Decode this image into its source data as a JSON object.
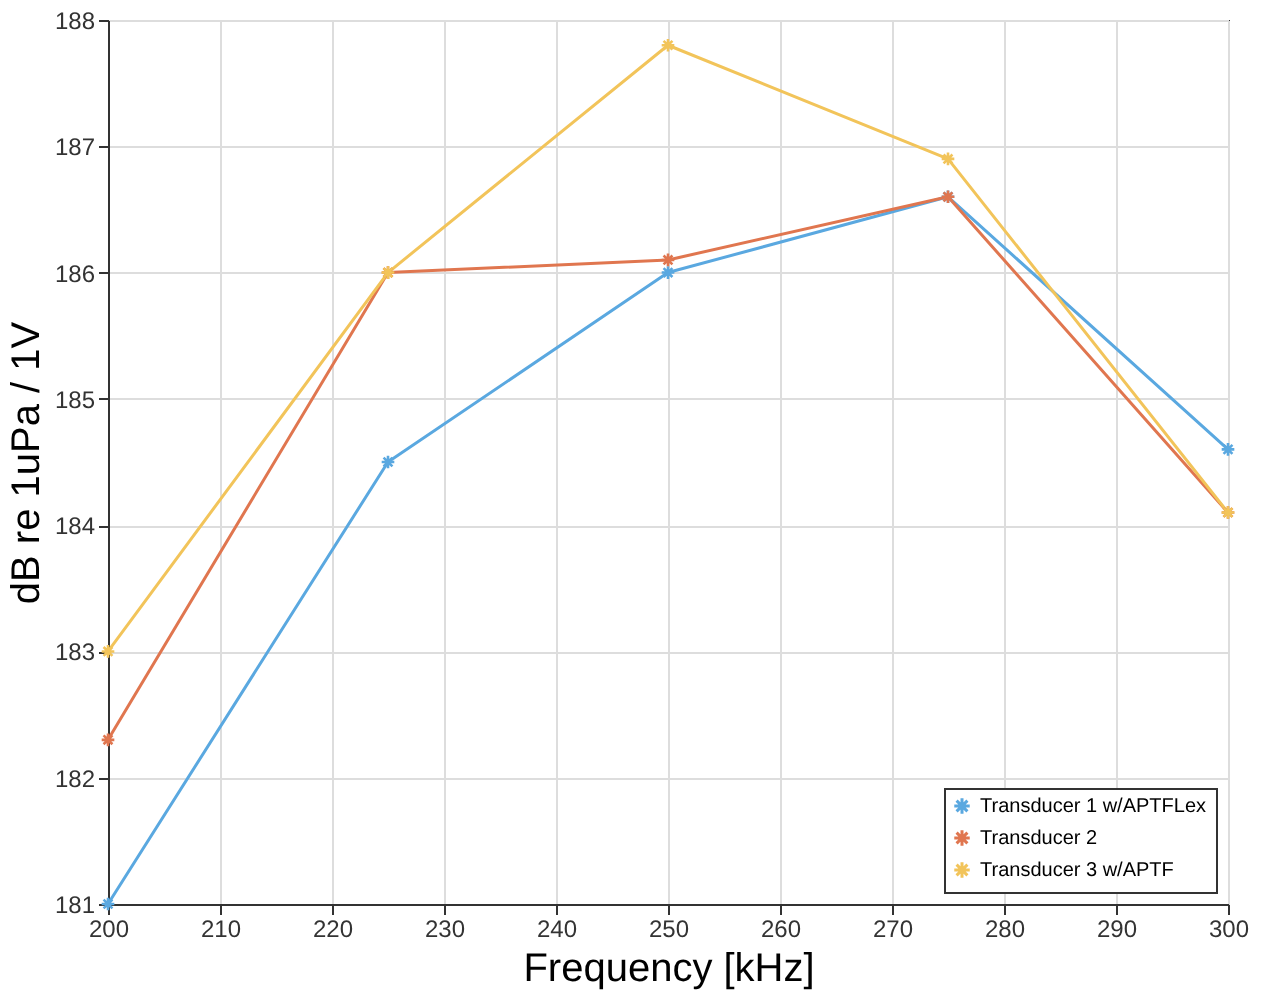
{
  "chart_data": {
    "type": "line",
    "xlabel": "Frequency [kHz]",
    "ylabel": "dB re 1uPa / 1V",
    "x": [
      200,
      225,
      250,
      275,
      300
    ],
    "series": [
      {
        "name": "Transducer 1 w/APTFLex",
        "color": "#5aa8e0",
        "values": [
          181,
          184.5,
          186,
          186.6,
          184.6
        ]
      },
      {
        "name": "Transducer 2",
        "color": "#e0764f",
        "values": [
          182.3,
          186,
          186.1,
          186.6,
          184.1
        ]
      },
      {
        "name": "Transducer 3 w/APTF",
        "color": "#f2c45a",
        "values": [
          183,
          186,
          187.8,
          186.9,
          184.1
        ]
      }
    ],
    "xlim": [
      200,
      300
    ],
    "xticks": [
      200,
      210,
      220,
      230,
      240,
      250,
      260,
      270,
      280,
      290,
      300
    ],
    "ylim": [
      181,
      188
    ],
    "yticks": [
      181,
      182,
      183,
      184,
      185,
      186,
      187,
      188
    ],
    "grid": true,
    "legend": "bottom right",
    "marker": "cross",
    "line_style": "solid"
  }
}
